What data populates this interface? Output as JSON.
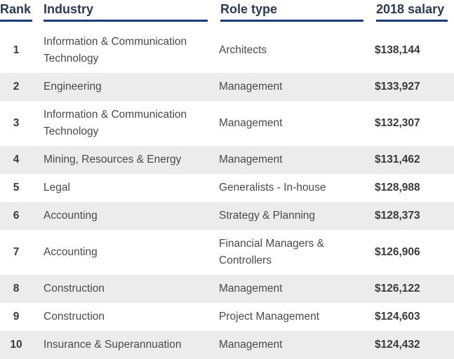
{
  "headers": {
    "rank": "Rank",
    "industry": "Industry",
    "role_type": "Role type",
    "salary": "2018 salary"
  },
  "rows": [
    {
      "rank": "1",
      "industry": "Information & Communication Technology",
      "role": "Architects",
      "salary": "$138,144"
    },
    {
      "rank": "2",
      "industry": "Engineering",
      "role": "Management",
      "salary": "$133,927"
    },
    {
      "rank": "3",
      "industry": "Information & Communication Technology",
      "role": "Management",
      "salary": "$132,307"
    },
    {
      "rank": "4",
      "industry": "Mining, Resources & Energy",
      "role": "Management",
      "salary": "$131,462"
    },
    {
      "rank": "5",
      "industry": "Legal",
      "role": "Generalists - In-house",
      "salary": "$128,988"
    },
    {
      "rank": "6",
      "industry": "Accounting",
      "role": "Strategy & Planning",
      "salary": "$128,373"
    },
    {
      "rank": "7",
      "industry": "Accounting",
      "role": "Financial Managers & Controllers",
      "salary": "$126,906"
    },
    {
      "rank": "8",
      "industry": "Construction",
      "role": "Management",
      "salary": "$126,122"
    },
    {
      "rank": "9",
      "industry": "Construction",
      "role": "Project Management",
      "salary": "$124,603"
    },
    {
      "rank": "10",
      "industry": "Insurance & Superannuation",
      "role": "Management",
      "salary": "$124,432"
    }
  ]
}
